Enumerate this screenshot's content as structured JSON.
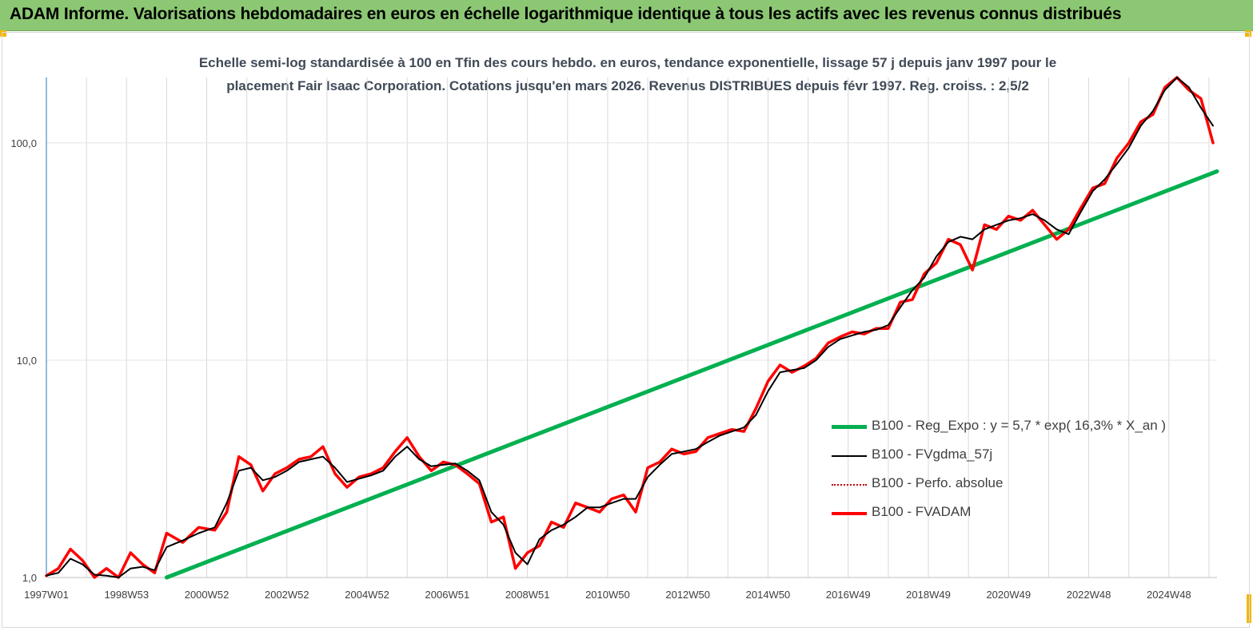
{
  "header": {
    "title": "ADAM Informe. Valorisations hebdomadaires en euros en échelle logarithmique identique à tous les actifs avec les revenus connus distribués"
  },
  "colors": {
    "header_bg": "#8cc873",
    "fvadam": "#ff0000",
    "fvgdma": "#000000",
    "perfo": "#c00000",
    "reg_expo": "#00b050"
  },
  "chart_data": {
    "type": "line",
    "title_line1": "Echelle semi-log standardisée à 100 en Tfin des cours hebdo. en euros, tendance exponentielle, lissage 57 j depuis janv 1997 pour le",
    "title_line2": "placement Fair Isaac Corporation. Cotations jusqu'en mars 2026. Revenus DISTRIBUES depuis févr 1997. Reg. croiss. : 2,5/2",
    "y_scale": "log",
    "ylim": [
      1,
      200
    ],
    "y_ticks": [
      "1,0",
      "10,0",
      "100,0"
    ],
    "y_tick_values": [
      1,
      10,
      100
    ],
    "xlim": [
      1997.0,
      2026.2
    ],
    "x_ticks": [
      "1997W01",
      "1998W53",
      "2000W52",
      "2002W52",
      "2004W52",
      "2006W51",
      "2008W51",
      "2010W50",
      "2012W50",
      "2014W50",
      "2016W49",
      "2018W49",
      "2020W49",
      "2022W48",
      "2024W48"
    ],
    "x_tick_values": [
      1997.0,
      1999.0,
      2001.0,
      2003.0,
      2005.0,
      2007.0,
      2009.0,
      2011.0,
      2013.0,
      2015.0,
      2017.0,
      2019.0,
      2021.0,
      2023.0,
      2025.0
    ],
    "grid": "vertical",
    "legend_position": "bottom-right",
    "series": [
      {
        "name": "B100 - Reg_Expo : y = 5,7 * exp( 16,3% *  X_an )",
        "key": "reg",
        "x": [
          2000.0,
          2026.2
        ],
        "y": [
          1.0,
          74
        ]
      },
      {
        "name": "B100 - FVgdma_57j",
        "key": "gdma",
        "x": [
          1997.0,
          1997.3,
          1997.6,
          1997.9,
          1998.2,
          1998.5,
          1998.8,
          1999.1,
          1999.4,
          1999.7,
          2000.0,
          2000.4,
          2000.8,
          2001.2,
          2001.5,
          2001.8,
          2002.1,
          2002.4,
          2002.7,
          2003.0,
          2003.3,
          2003.6,
          2003.9,
          2004.2,
          2004.5,
          2004.8,
          2005.1,
          2005.4,
          2005.7,
          2006.0,
          2006.3,
          2006.6,
          2006.9,
          2007.2,
          2007.5,
          2007.8,
          2008.1,
          2008.4,
          2008.7,
          2009.0,
          2009.3,
          2009.6,
          2009.9,
          2010.2,
          2010.5,
          2010.8,
          2011.1,
          2011.4,
          2011.7,
          2012.0,
          2012.3,
          2012.6,
          2012.9,
          2013.2,
          2013.5,
          2013.8,
          2014.1,
          2014.4,
          2014.7,
          2015.0,
          2015.3,
          2015.6,
          2015.9,
          2016.2,
          2016.5,
          2016.8,
          2017.1,
          2017.4,
          2017.7,
          2018.0,
          2018.3,
          2018.6,
          2018.9,
          2019.2,
          2019.5,
          2019.8,
          2020.1,
          2020.4,
          2020.7,
          2021.0,
          2021.3,
          2021.6,
          2021.9,
          2022.2,
          2022.5,
          2022.8,
          2023.1,
          2023.4,
          2023.7,
          2024.0,
          2024.3,
          2024.6,
          2024.9,
          2025.2,
          2025.5,
          2025.8,
          2026.1
        ],
        "y": [
          1.02,
          1.05,
          1.22,
          1.15,
          1.03,
          1.02,
          0.98,
          1.1,
          1.12,
          1.08,
          1.38,
          1.48,
          1.6,
          1.7,
          2.2,
          3.1,
          3.2,
          2.8,
          2.9,
          3.1,
          3.4,
          3.5,
          3.6,
          3.2,
          2.75,
          2.85,
          2.95,
          3.1,
          3.6,
          4.0,
          3.5,
          3.25,
          3.3,
          3.35,
          3.1,
          2.8,
          2.0,
          1.75,
          1.3,
          1.15,
          1.5,
          1.65,
          1.75,
          1.9,
          2.1,
          2.1,
          2.2,
          2.3,
          2.3,
          2.9,
          3.3,
          3.7,
          3.8,
          3.9,
          4.2,
          4.5,
          4.7,
          4.9,
          5.6,
          7.2,
          8.8,
          9.0,
          9.2,
          10.0,
          11.5,
          12.5,
          13.0,
          13.5,
          13.8,
          14.5,
          17.5,
          21.0,
          24.0,
          30.0,
          35.0,
          37.0,
          36.0,
          40.0,
          42.0,
          44.0,
          45.0,
          47.0,
          44.0,
          40.0,
          38.0,
          48.0,
          60.0,
          68.0,
          80.0,
          95.0,
          120.0,
          140.0,
          175.0,
          200.0,
          180.0,
          145.0,
          120.0
        ]
      },
      {
        "name": "B100 - Perfo. absolue",
        "key": "perfo",
        "x": [],
        "y": []
      },
      {
        "name": "B100 - FVADAM",
        "key": "fvadam",
        "x": [
          1997.0,
          1997.3,
          1997.6,
          1997.9,
          1998.2,
          1998.5,
          1998.8,
          1999.1,
          1999.4,
          1999.7,
          2000.0,
          2000.4,
          2000.8,
          2001.2,
          2001.5,
          2001.8,
          2002.1,
          2002.4,
          2002.7,
          2003.0,
          2003.3,
          2003.6,
          2003.9,
          2004.2,
          2004.5,
          2004.8,
          2005.1,
          2005.4,
          2005.7,
          2006.0,
          2006.3,
          2006.6,
          2006.9,
          2007.2,
          2007.5,
          2007.8,
          2008.1,
          2008.4,
          2008.7,
          2009.0,
          2009.3,
          2009.6,
          2009.9,
          2010.2,
          2010.5,
          2010.8,
          2011.1,
          2011.4,
          2011.7,
          2012.0,
          2012.3,
          2012.6,
          2012.9,
          2013.2,
          2013.5,
          2013.8,
          2014.1,
          2014.4,
          2014.7,
          2015.0,
          2015.3,
          2015.6,
          2015.9,
          2016.2,
          2016.5,
          2016.8,
          2017.1,
          2017.4,
          2017.7,
          2018.0,
          2018.3,
          2018.6,
          2018.9,
          2019.2,
          2019.5,
          2019.8,
          2020.1,
          2020.4,
          2020.7,
          2021.0,
          2021.3,
          2021.6,
          2021.9,
          2022.2,
          2022.5,
          2022.8,
          2023.1,
          2023.4,
          2023.7,
          2024.0,
          2024.3,
          2024.6,
          2024.9,
          2025.2,
          2025.5,
          2025.8,
          2026.1
        ],
        "y": [
          1.02,
          1.1,
          1.35,
          1.2,
          0.98,
          1.1,
          0.95,
          1.3,
          1.15,
          1.05,
          1.6,
          1.45,
          1.7,
          1.65,
          2.0,
          3.6,
          3.3,
          2.5,
          3.0,
          3.2,
          3.5,
          3.6,
          4.0,
          3.0,
          2.6,
          2.9,
          3.0,
          3.2,
          3.8,
          4.4,
          3.6,
          3.1,
          3.4,
          3.3,
          3.0,
          2.7,
          1.8,
          1.9,
          1.1,
          1.3,
          1.4,
          1.8,
          1.7,
          2.2,
          2.1,
          2.0,
          2.3,
          2.4,
          2.0,
          3.2,
          3.4,
          3.9,
          3.7,
          3.8,
          4.4,
          4.6,
          4.8,
          4.7,
          6.0,
          8.0,
          9.5,
          8.8,
          9.4,
          10.2,
          12.0,
          12.8,
          13.5,
          13.2,
          14.0,
          14.0,
          18.5,
          19.0,
          25.0,
          28.0,
          36.0,
          34.0,
          26.0,
          42.0,
          40.0,
          46.0,
          44.0,
          49.0,
          42.0,
          36.0,
          40.0,
          50.0,
          62.0,
          65.0,
          85.0,
          100.0,
          125.0,
          135.0,
          180.0,
          210.0,
          175.0,
          160.0,
          100.0
        ]
      }
    ]
  }
}
